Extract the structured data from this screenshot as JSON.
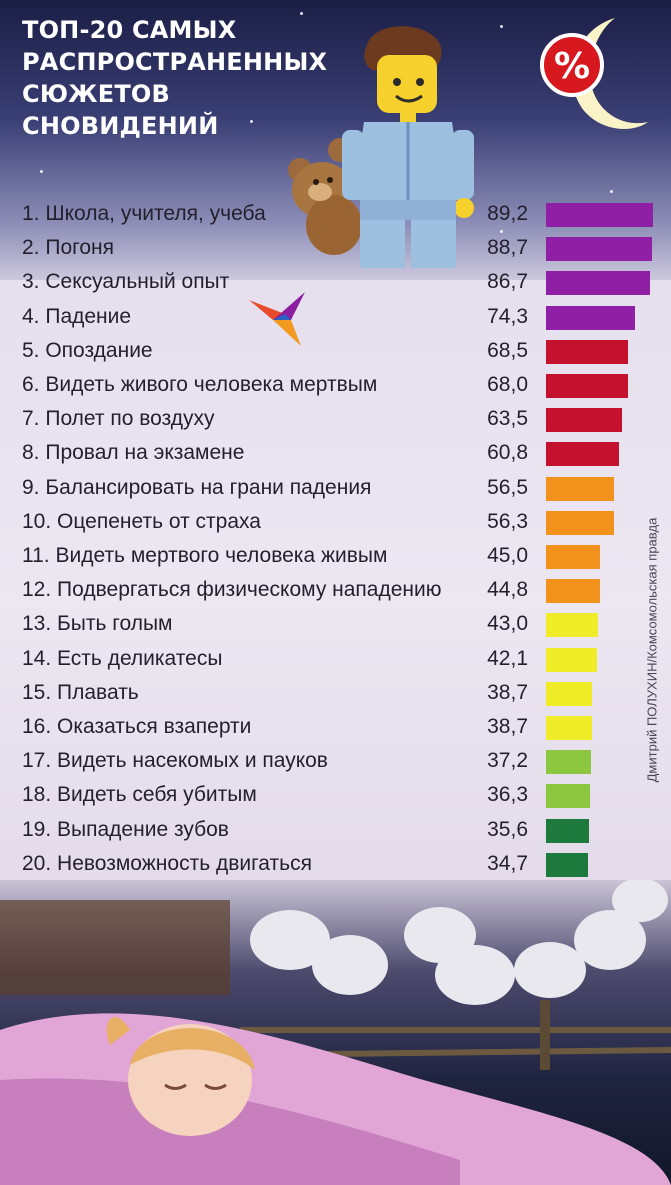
{
  "header": {
    "title_lines": [
      "ТОП-20 САМЫХ",
      "РАСПРОСТРАНЕННЫХ",
      "СЮЖЕТОВ",
      "СНОВИДЕНИЙ"
    ],
    "logo_text": "%"
  },
  "credit": "Дмитрий ПОЛУХИН/Комсомольская правда",
  "colors": {
    "purple": "#8f1fa5",
    "red": "#c4122e",
    "orange": "#f2921d",
    "yellow": "#f1ec28",
    "light_green": "#8dc63f",
    "dark_green": "#1d7a3c",
    "logo_red": "#d7191f"
  },
  "icons": [
    "lego-figure-icon",
    "teddy-bear-icon",
    "bird-logo-icon",
    "moon-icon",
    "percent-logo-icon",
    "sheep-icon",
    "sleeping-girl-icon"
  ],
  "chart_data": {
    "type": "bar",
    "orientation": "horizontal",
    "title": "ТОП-20 САМЫХ РАСПРОСТРАНЕННЫХ СЮЖЕТОВ СНОВИДЕНИЙ",
    "xlim": [
      0,
      90
    ],
    "grid": false,
    "items": [
      {
        "label": "1. Школа, учителя, учеба",
        "value": 89.2,
        "value_label": "89,2",
        "color": "#8f1fa5"
      },
      {
        "label": "2. Погоня",
        "value": 88.7,
        "value_label": "88,7",
        "color": "#8f1fa5"
      },
      {
        "label": "3. Сексуальный опыт",
        "value": 86.7,
        "value_label": "86,7",
        "color": "#8f1fa5"
      },
      {
        "label": "4. Падение",
        "value": 74.3,
        "value_label": "74,3",
        "color": "#8f1fa5"
      },
      {
        "label": "5. Опоздание",
        "value": 68.5,
        "value_label": "68,5",
        "color": "#c4122e"
      },
      {
        "label": "6. Видеть живого человека мертвым",
        "value": 68.0,
        "value_label": "68,0",
        "color": "#c4122e"
      },
      {
        "label": "7. Полет по воздуху",
        "value": 63.5,
        "value_label": "63,5",
        "color": "#c4122e"
      },
      {
        "label": "8. Провал на экзамене",
        "value": 60.8,
        "value_label": "60,8",
        "color": "#c4122e"
      },
      {
        "label": "9. Балансировать на грани падения",
        "value": 56.5,
        "value_label": "56,5",
        "color": "#f2921d"
      },
      {
        "label": "10. Оцепенеть от страха",
        "value": 56.3,
        "value_label": "56,3",
        "color": "#f2921d"
      },
      {
        "label": "11. Видеть мертвого человека живым",
        "value": 45.0,
        "value_label": "45,0",
        "color": "#f2921d"
      },
      {
        "label": "12. Подвергаться физическому нападению",
        "value": 44.8,
        "value_label": "44,8",
        "color": "#f2921d"
      },
      {
        "label": "13. Быть голым",
        "value": 43.0,
        "value_label": "43,0",
        "color": "#f1ec28"
      },
      {
        "label": "14. Есть деликатесы",
        "value": 42.1,
        "value_label": "42,1",
        "color": "#f1ec28"
      },
      {
        "label": "15. Плавать",
        "value": 38.7,
        "value_label": "38,7",
        "color": "#f1ec28"
      },
      {
        "label": "16. Оказаться взаперти",
        "value": 38.7,
        "value_label": "38,7",
        "color": "#f1ec28"
      },
      {
        "label": "17. Видеть насекомых и пауков",
        "value": 37.2,
        "value_label": "37,2",
        "color": "#8dc63f"
      },
      {
        "label": "18. Видеть себя убитым",
        "value": 36.3,
        "value_label": "36,3",
        "color": "#8dc63f"
      },
      {
        "label": "19. Выпадение зубов",
        "value": 35.6,
        "value_label": "35,6",
        "color": "#1d7a3c"
      },
      {
        "label": "20. Невозможность двигаться",
        "value": 34.7,
        "value_label": "34,7",
        "color": "#1d7a3c"
      }
    ]
  }
}
